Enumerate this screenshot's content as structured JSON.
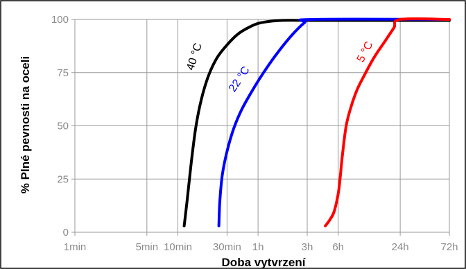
{
  "chart_data": {
    "type": "line",
    "xlabel": "Doba vytvrzení",
    "ylabel": "% Plné pevnosti na oceli",
    "x_scale": "log",
    "x_unit": "minutes",
    "xlim": [
      1,
      4320
    ],
    "ylim": [
      0,
      100
    ],
    "grid": true,
    "x_ticks": [
      {
        "value": 1,
        "label": "1min"
      },
      {
        "value": 5,
        "label": "5min"
      },
      {
        "value": 10,
        "label": "10min"
      },
      {
        "value": 30,
        "label": "30min"
      },
      {
        "value": 60,
        "label": "1h"
      },
      {
        "value": 180,
        "label": "3h"
      },
      {
        "value": 360,
        "label": "6h"
      },
      {
        "value": 1440,
        "label": "24h"
      },
      {
        "value": 4320,
        "label": "72h"
      }
    ],
    "y_ticks": [
      0,
      25,
      50,
      75,
      100
    ],
    "series": [
      {
        "name": "40 °C",
        "color": "#000000",
        "x": [
          11.5,
          12.3,
          13.5,
          15,
          17,
          20,
          24,
          30,
          38,
          50,
          65,
          100,
          200,
          500,
          4320
        ],
        "y": [
          3,
          15,
          33,
          50,
          63,
          74,
          82,
          88,
          93,
          96.5,
          98.5,
          99.5,
          99.5,
          99.5,
          99.5
        ]
      },
      {
        "name": "22 °C",
        "color": "#0000ff",
        "x": [
          25,
          25.5,
          27,
          30,
          35,
          42,
          55,
          70,
          95,
          130,
          170,
          200,
          4320
        ],
        "y": [
          3,
          14,
          27,
          38,
          49,
          58,
          68,
          76,
          85,
          93,
          98.5,
          100,
          100
        ]
      },
      {
        "name": "5 °C",
        "color": "#ff0000",
        "x": [
          270,
          300,
          330,
          365,
          395,
          430,
          480,
          550,
          650,
          800,
          1000,
          1250,
          1440,
          4320
        ],
        "y": [
          3,
          6,
          10,
          20,
          36,
          50,
          59,
          67,
          74,
          82,
          89,
          96,
          100,
          100
        ]
      }
    ]
  }
}
